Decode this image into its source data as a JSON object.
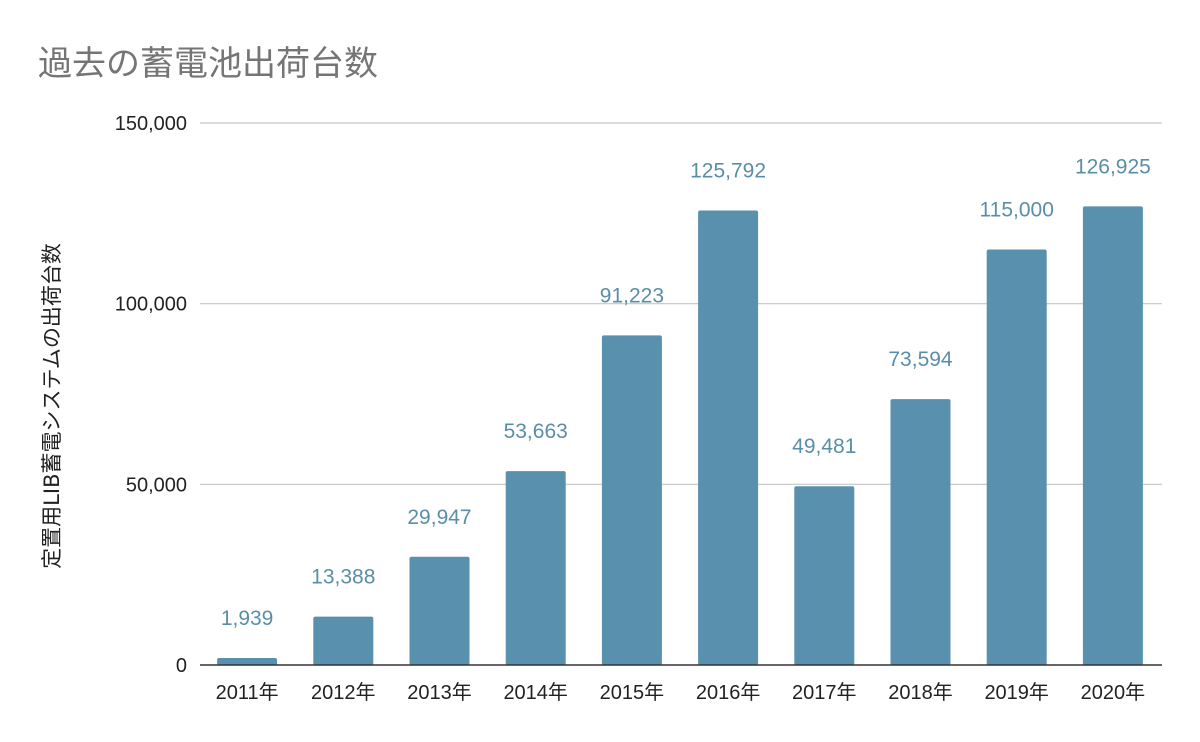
{
  "chart_data": {
    "type": "bar",
    "title": "過去の蓄電池出荷台数",
    "xlabel": "",
    "ylabel": "定置用LIB蓄電システムの出荷台数",
    "categories": [
      "2011年",
      "2012年",
      "2013年",
      "2014年",
      "2015年",
      "2016年",
      "2017年",
      "2018年",
      "2019年",
      "2020年"
    ],
    "values": [
      1939,
      13388,
      29947,
      53663,
      91223,
      125792,
      49481,
      73594,
      115000,
      126925
    ],
    "data_labels": [
      "1,939",
      "13,388",
      "29,947",
      "53,663",
      "91,223",
      "125,792",
      "49,481",
      "73,594",
      "115,000",
      "126,925"
    ],
    "ylim": [
      0,
      150000
    ],
    "yticks": [
      0,
      50000,
      100000,
      150000
    ],
    "ytick_labels": [
      "0",
      "50,000",
      "100,000",
      "150,000"
    ],
    "grid": true,
    "legend": "none",
    "colors": {
      "bar": "#5990ae",
      "data_label": "#5a8ea8",
      "title": "#757575"
    }
  }
}
